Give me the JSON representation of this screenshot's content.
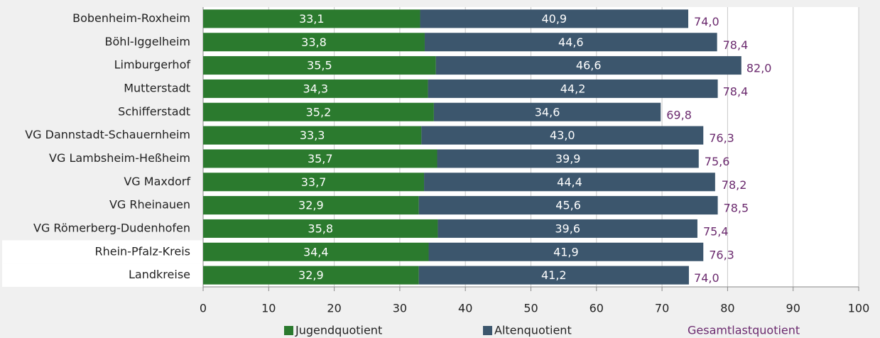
{
  "chart_data": {
    "type": "stacked_bar_horizontal",
    "categories": [
      "Bobenheim-Roxheim",
      "Böhl-Iggelheim",
      "Limburgerhof",
      "Mutterstadt",
      "Schifferstadt",
      "VG Dannstadt-Schauernheim",
      "VG Lambsheim-Heßheim",
      "VG Maxdorf",
      "VG Rheinauen",
      "VG Römerberg-Dudenhofen",
      "Rhein-Pfalz-Kreis",
      "Landkreise"
    ],
    "series": [
      {
        "name": "Jugendquotient",
        "color": "#2b7a2e",
        "values": [
          33.1,
          33.8,
          35.5,
          34.3,
          35.2,
          33.3,
          35.7,
          33.7,
          32.9,
          35.8,
          34.4,
          32.9
        ],
        "value_labels": [
          "33,1",
          "33,8",
          "35,5",
          "34,3",
          "35,2",
          "33,3",
          "35,7",
          "33,7",
          "32,9",
          "35,8",
          "34,4",
          "32,9"
        ]
      },
      {
        "name": "Altenquotient",
        "color": "#3c566d",
        "values": [
          40.9,
          44.6,
          46.6,
          44.2,
          34.6,
          43.0,
          39.9,
          44.4,
          45.6,
          39.6,
          41.9,
          41.2
        ],
        "value_labels": [
          "40,9",
          "44,6",
          "46,6",
          "44,2",
          "34,6",
          "43,0",
          "39,9",
          "44,4",
          "45,6",
          "39,6",
          "41,9",
          "41,2"
        ]
      }
    ],
    "totals": {
      "name": "Gesamtlastquotient",
      "color": "#6b2a6e",
      "values": [
        74.0,
        78.4,
        82.0,
        78.4,
        69.8,
        76.3,
        75.6,
        78.2,
        78.5,
        75.4,
        76.3,
        74.0
      ],
      "value_labels": [
        "74,0",
        "78,4",
        "82,0",
        "78,4",
        "69,8",
        "76,3",
        "75,6",
        "78,2",
        "78,5",
        "75,4",
        "76,3",
        "74,0"
      ]
    },
    "xlim": [
      0,
      100
    ],
    "xticks": [
      0,
      10,
      20,
      30,
      40,
      50,
      60,
      70,
      80,
      90,
      100
    ],
    "grid": true,
    "highlight": [
      10,
      11
    ],
    "legend": "bottom"
  }
}
